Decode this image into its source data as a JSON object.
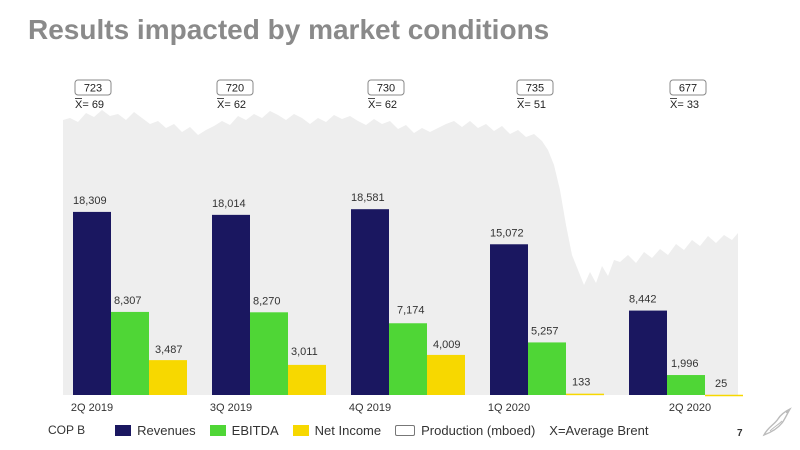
{
  "title": "Results impacted by market conditions",
  "unit_label": "COP B",
  "page_number": "7",
  "chart_data": {
    "type": "bar",
    "categories": [
      "2Q 2019",
      "3Q 2019",
      "4Q 2019",
      "1Q 2020",
      "2Q 2020"
    ],
    "series": [
      {
        "name": "Revenues",
        "color": "#1a1760",
        "values": [
          18309,
          18014,
          18581,
          15072,
          8442
        ],
        "labels": [
          "18,309",
          "18,014",
          "18,581",
          "15,072",
          "8,442"
        ]
      },
      {
        "name": "EBITDA",
        "color": "#4fd636",
        "values": [
          8307,
          8270,
          7174,
          5257,
          1996
        ],
        "labels": [
          "8,307",
          "8,270",
          "7,174",
          "5,257",
          "1,996"
        ]
      },
      {
        "name": "Net Income",
        "color": "#f7d800",
        "values": [
          3487,
          3011,
          4009,
          133,
          25
        ],
        "labels": [
          "3,487",
          "3,011",
          "4,009",
          "133",
          "25"
        ]
      }
    ],
    "production_mboed": [
      "723",
      "720",
      "730",
      "735",
      "677"
    ],
    "average_brent": [
      "X= 69",
      "X= 62",
      "X= 62",
      "X= 51",
      "X= 33"
    ],
    "production_legend": "Production (mboed)",
    "brent_legend": "X=Average Brent",
    "ylim": [
      0,
      21000
    ]
  }
}
